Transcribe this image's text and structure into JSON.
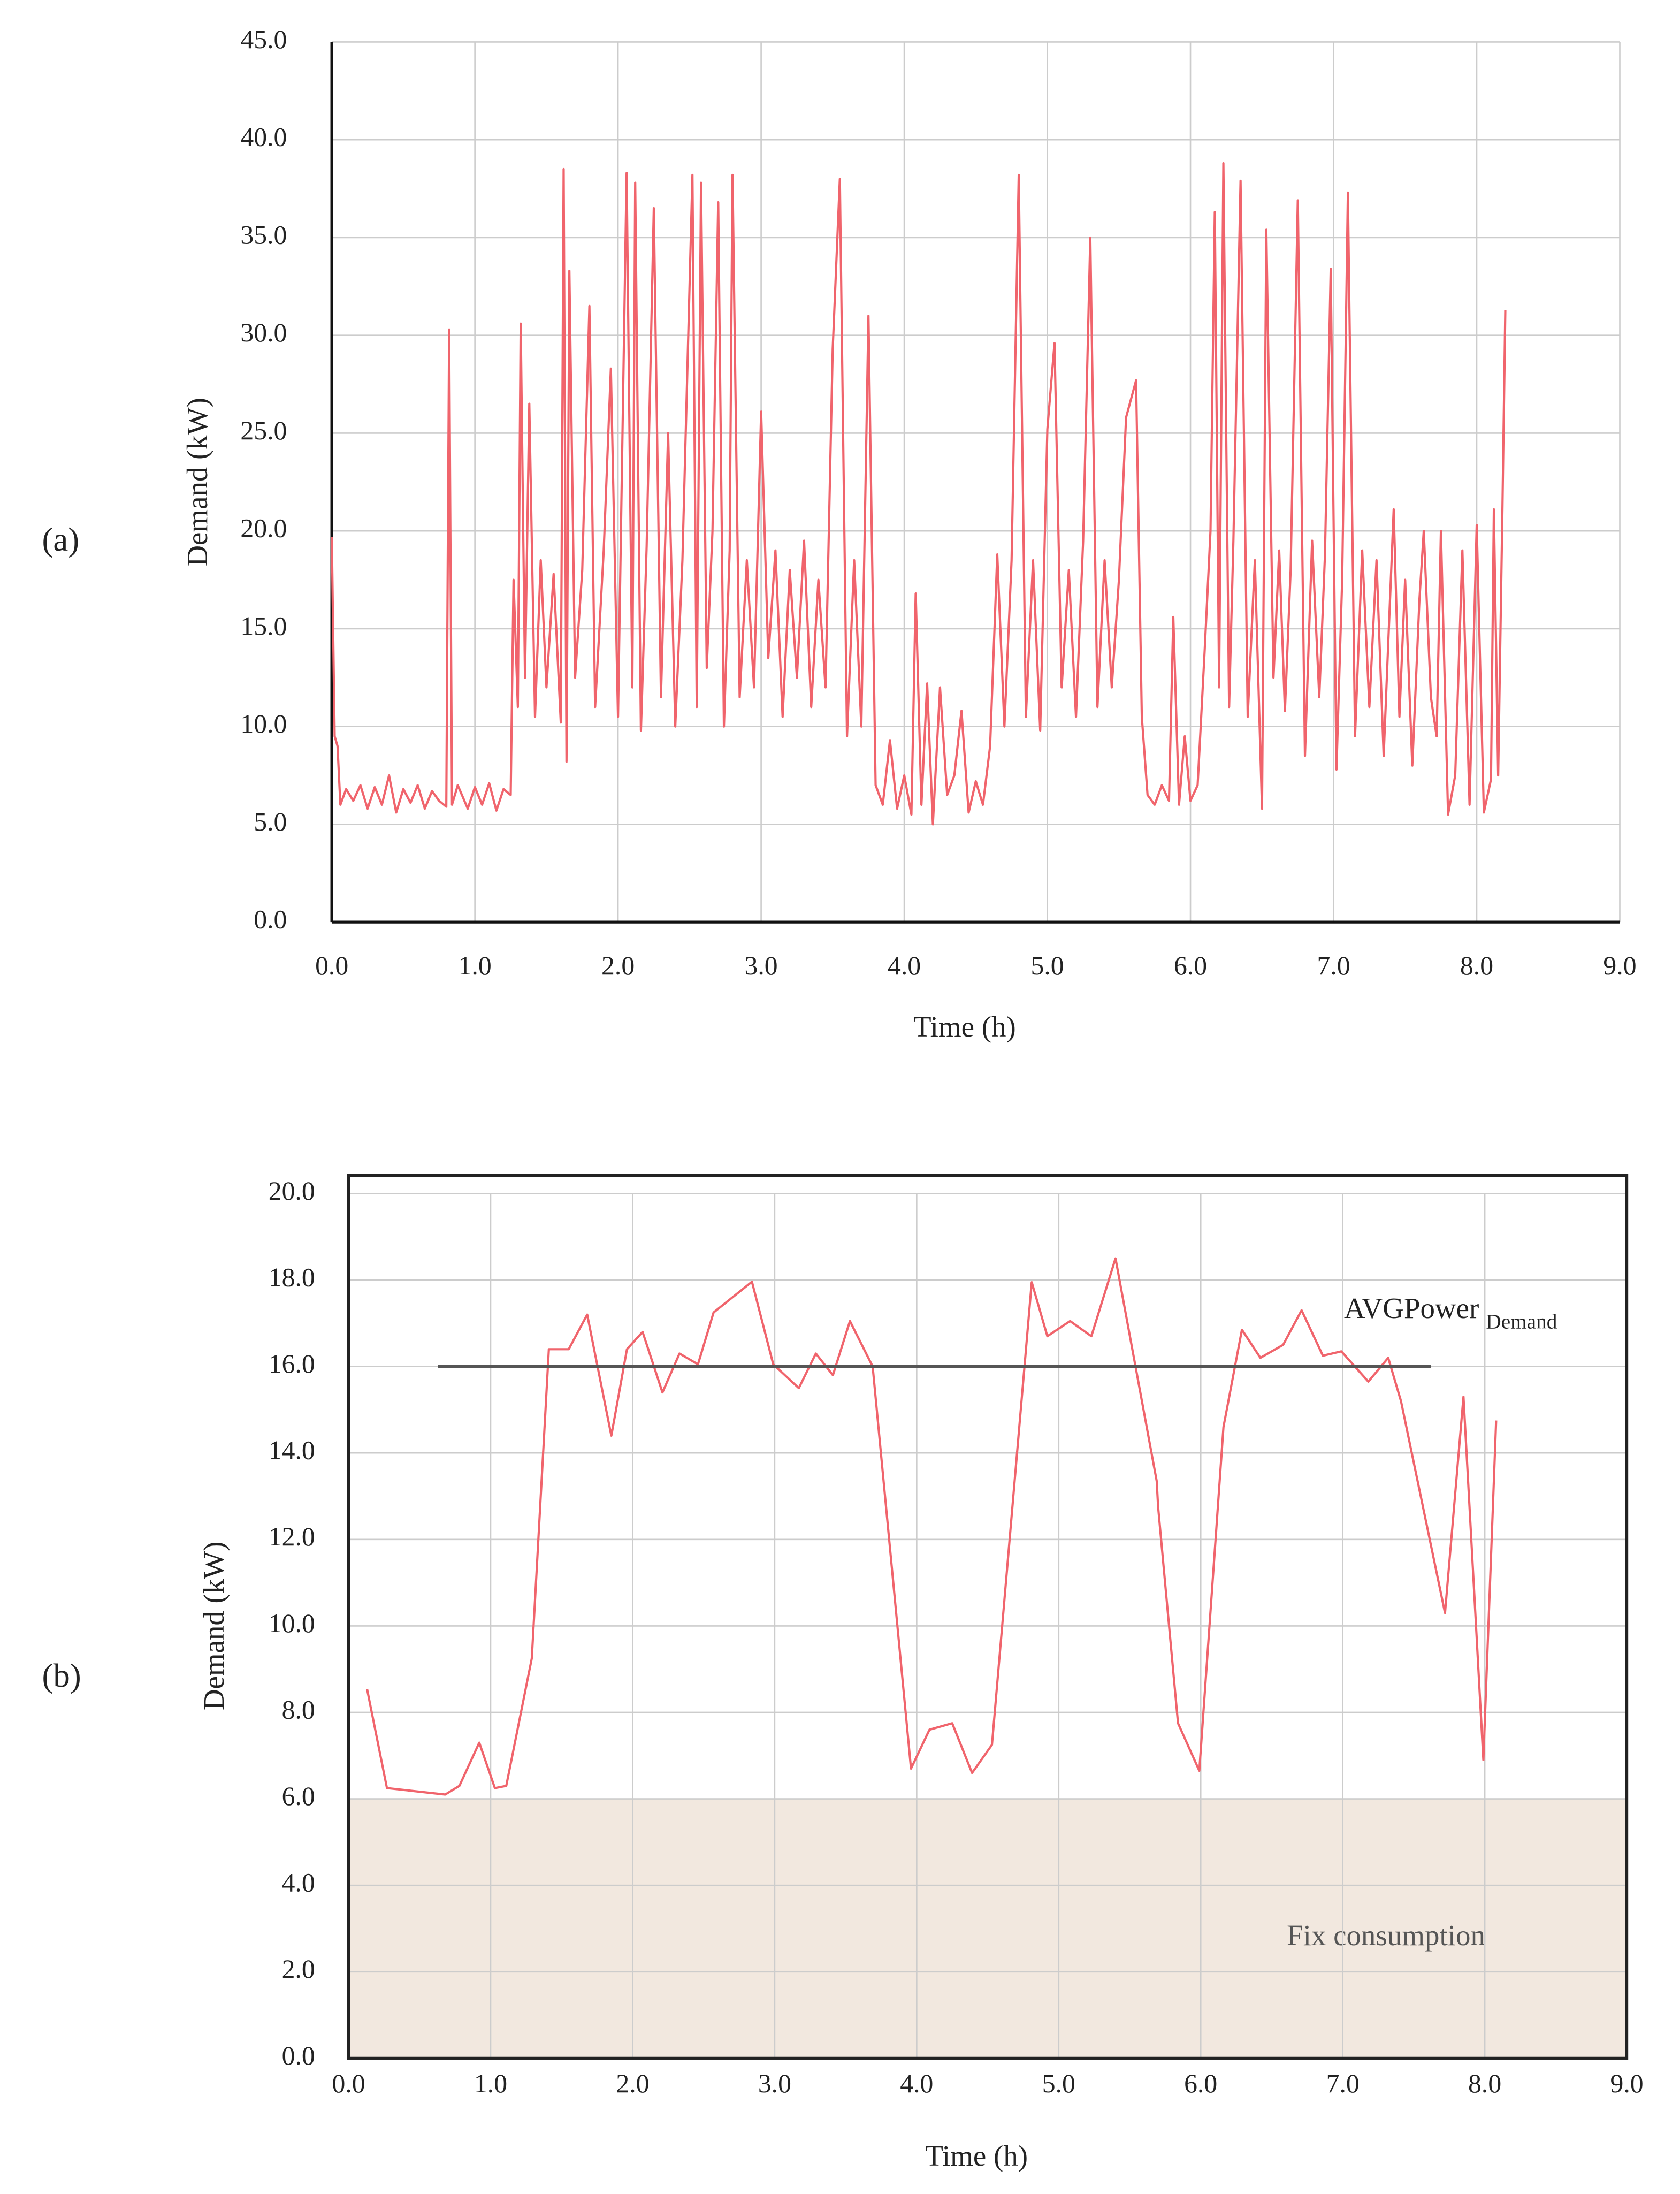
{
  "chart_data": [
    {
      "type": "line",
      "panel_label": "(a)",
      "x_label": "Time (h)",
      "y_label": "Demand (kW)",
      "grid": true,
      "frame": "axes",
      "xlim": [
        0,
        9
      ],
      "ylim": [
        0,
        45
      ],
      "xticks": [
        {
          "value": 0,
          "label": "0.0"
        },
        {
          "value": 1,
          "label": "1.0"
        },
        {
          "value": 2,
          "label": "2.0"
        },
        {
          "value": 3,
          "label": "3.0"
        },
        {
          "value": 4,
          "label": "4.0"
        },
        {
          "value": 5,
          "label": "5.0"
        },
        {
          "value": 6,
          "label": "6.0"
        },
        {
          "value": 7,
          "label": "7.0"
        },
        {
          "value": 8,
          "label": "8.0"
        },
        {
          "value": 9,
          "label": "9.0"
        }
      ],
      "yticks": [
        {
          "value": 0,
          "label": "0.0"
        },
        {
          "value": 5,
          "label": "5.0"
        },
        {
          "value": 10,
          "label": "10.0"
        },
        {
          "value": 15,
          "label": "15.0"
        },
        {
          "value": 20,
          "label": "20.0"
        },
        {
          "value": 25,
          "label": "25.0"
        },
        {
          "value": 30,
          "label": "30.0"
        },
        {
          "value": 35,
          "label": "35.0"
        },
        {
          "value": 40,
          "label": "40.0"
        },
        {
          "value": 45,
          "label": "45.0"
        }
      ],
      "series": [
        {
          "color": "#f0646c",
          "x": [
            0,
            0.02,
            0.04,
            0.06,
            0.1,
            0.15,
            0.2,
            0.25,
            0.3,
            0.35,
            0.4,
            0.45,
            0.5,
            0.55,
            0.6,
            0.65,
            0.7,
            0.75,
            0.8,
            0.82,
            0.84,
            0.88,
            0.95,
            1.0,
            1.05,
            1.1,
            1.15,
            1.2,
            1.25,
            1.27,
            1.3,
            1.32,
            1.35,
            1.38,
            1.42,
            1.46,
            1.5,
            1.55,
            1.6,
            1.62,
            1.64,
            1.66,
            1.7,
            1.75,
            1.8,
            1.84,
            1.9,
            1.95,
            2.0,
            2.06,
            2.1,
            2.12,
            2.16,
            2.2,
            2.25,
            2.3,
            2.35,
            2.4,
            2.45,
            2.52,
            2.55,
            2.58,
            2.62,
            2.66,
            2.7,
            2.74,
            2.78,
            2.8,
            2.85,
            2.9,
            2.95,
            3.0,
            3.05,
            3.1,
            3.15,
            3.2,
            3.25,
            3.3,
            3.35,
            3.4,
            3.45,
            3.5,
            3.55,
            3.6,
            3.65,
            3.7,
            3.75,
            3.8,
            3.85,
            3.9,
            3.95,
            4.0,
            4.05,
            4.08,
            4.12,
            4.16,
            4.2,
            4.25,
            4.3,
            4.35,
            4.4,
            4.45,
            4.5,
            4.55,
            4.6,
            4.65,
            4.7,
            4.75,
            4.8,
            4.85,
            4.9,
            4.95,
            5.0,
            5.05,
            5.1,
            5.15,
            5.2,
            5.25,
            5.3,
            5.35,
            5.4,
            5.45,
            5.5,
            5.55,
            5.62,
            5.66,
            5.7,
            5.75,
            5.8,
            5.85,
            5.88,
            5.92,
            5.96,
            6.0,
            6.05,
            6.1,
            6.14,
            6.17,
            6.2,
            6.23,
            6.27,
            6.3,
            6.35,
            6.4,
            6.45,
            6.5,
            6.53,
            6.58,
            6.62,
            6.66,
            6.7,
            6.75,
            6.8,
            6.85,
            6.9,
            6.94,
            6.98,
            7.02,
            7.06,
            7.1,
            7.15,
            7.2,
            7.25,
            7.3,
            7.35,
            7.42,
            7.46,
            7.5,
            7.55,
            7.6,
            7.63,
            7.68,
            7.72,
            7.75,
            7.8,
            7.85,
            7.9,
            7.95,
            8.0,
            8.05,
            8.1,
            8.12,
            8.15,
            8.18,
            8.2
          ],
          "values": [
            19.7,
            9.5,
            9.0,
            6.0,
            6.8,
            6.2,
            7.0,
            5.8,
            6.9,
            6.0,
            7.5,
            5.6,
            6.8,
            6.1,
            7.0,
            5.8,
            6.7,
            6.2,
            5.9,
            30.3,
            6.0,
            7.0,
            5.8,
            6.9,
            6.0,
            7.1,
            5.7,
            6.8,
            6.5,
            17.5,
            11.0,
            30.6,
            12.5,
            26.5,
            10.5,
            18.5,
            12.0,
            17.8,
            10.2,
            38.5,
            8.2,
            33.3,
            12.5,
            18.0,
            31.5,
            11.0,
            19.0,
            28.3,
            10.5,
            38.3,
            12.0,
            37.8,
            9.8,
            19.2,
            36.5,
            11.5,
            25.0,
            10.0,
            18.5,
            38.2,
            11.0,
            37.8,
            13.0,
            20.0,
            36.8,
            10.0,
            19.0,
            38.2,
            11.5,
            18.5,
            12.0,
            26.1,
            13.5,
            19.0,
            10.5,
            18.0,
            12.5,
            19.5,
            11.0,
            17.5,
            12.0,
            29.3,
            38.0,
            9.5,
            18.5,
            10.0,
            31.0,
            7.0,
            6.0,
            9.3,
            5.8,
            7.5,
            5.5,
            16.8,
            6.0,
            12.2,
            5.0,
            12.0,
            6.5,
            7.5,
            10.8,
            5.6,
            7.2,
            6.0,
            9.0,
            18.8,
            10.0,
            18.5,
            38.2,
            10.5,
            18.5,
            9.8,
            25.2,
            29.6,
            12.0,
            18.0,
            10.5,
            19.5,
            35.0,
            11.0,
            18.5,
            12.0,
            17.5,
            25.8,
            27.7,
            10.5,
            6.5,
            6.0,
            7.0,
            6.2,
            15.6,
            6.0,
            9.5,
            6.2,
            7.0,
            14.0,
            20.0,
            36.3,
            12.0,
            38.8,
            11.0,
            19.5,
            37.9,
            10.5,
            18.5,
            5.8,
            35.4,
            12.5,
            19.0,
            10.8,
            18.0,
            36.9,
            8.5,
            19.5,
            11.5,
            18.8,
            33.4,
            7.8,
            17.5,
            37.3,
            9.5,
            19.0,
            11.0,
            18.5,
            8.5,
            21.1,
            10.5,
            17.5,
            8.0,
            16.5,
            20.0,
            11.5,
            9.5,
            20.0,
            5.5,
            7.5,
            19.0,
            6.0,
            20.3,
            5.6,
            7.3,
            21.1,
            7.5,
            21.2,
            31.3
          ]
        }
      ]
    },
    {
      "type": "line",
      "panel_label": "(b)",
      "x_label": "Time (h)",
      "y_label": "Demand (kW)",
      "grid": true,
      "frame": "box",
      "xlim": [
        0,
        9
      ],
      "ylim": [
        0,
        20
      ],
      "xticks": [
        {
          "value": 0,
          "label": "0.0"
        },
        {
          "value": 1,
          "label": "1.0"
        },
        {
          "value": 2,
          "label": "2.0"
        },
        {
          "value": 3,
          "label": "3.0"
        },
        {
          "value": 4,
          "label": "4.0"
        },
        {
          "value": 5,
          "label": "5.0"
        },
        {
          "value": 6,
          "label": "6.0"
        },
        {
          "value": 7,
          "label": "7.0"
        },
        {
          "value": 8,
          "label": "8.0"
        },
        {
          "value": 9,
          "label": "9.0"
        }
      ],
      "yticks": [
        {
          "value": 0,
          "label": "0.0"
        },
        {
          "value": 2,
          "label": "2.0"
        },
        {
          "value": 4,
          "label": "4.0"
        },
        {
          "value": 6,
          "label": "6.0"
        },
        {
          "value": 8,
          "label": "8.0"
        },
        {
          "value": 10,
          "label": "10.0"
        },
        {
          "value": 12,
          "label": "12.0"
        },
        {
          "value": 14,
          "label": "14.0"
        },
        {
          "value": 16,
          "label": "16.0"
        },
        {
          "value": 18,
          "label": "18.0"
        },
        {
          "value": 20,
          "label": "20.0"
        }
      ],
      "shade": {
        "ymin": 0,
        "ymax": 6,
        "color": "#f2e8df",
        "label": "Fix consumption"
      },
      "annotation": {
        "text": "AVGPower",
        "sub": "Demand"
      },
      "series": [
        {
          "color": "#f0646c",
          "x": [
            0.13,
            0.27,
            0.68,
            0.78,
            0.92,
            1.03,
            1.11,
            1.29,
            1.41,
            1.55,
            1.68,
            1.85,
            1.96,
            2.07,
            2.21,
            2.33,
            2.46,
            2.57,
            2.84,
            2.99,
            3.17,
            3.29,
            3.41,
            3.53,
            3.69,
            3.96,
            4.09,
            4.25,
            4.39,
            4.53,
            4.81,
            4.92,
            5.08,
            5.23,
            5.4,
            5.69,
            5.7,
            5.84,
            5.99,
            6.16,
            6.29,
            6.42,
            6.58,
            6.71,
            6.86,
            6.99,
            7.18,
            7.32,
            7.41,
            7.72,
            7.85,
            7.99,
            8.08
          ],
          "values": [
            8.54,
            6.25,
            6.1,
            6.3,
            7.3,
            6.25,
            6.3,
            9.25,
            16.4,
            16.4,
            17.2,
            14.4,
            16.4,
            16.8,
            15.4,
            16.3,
            16.05,
            17.25,
            17.96,
            16.05,
            15.5,
            16.3,
            15.8,
            17.05,
            16.0,
            6.7,
            7.6,
            7.75,
            6.6,
            7.25,
            17.95,
            16.7,
            17.05,
            16.7,
            18.5,
            13.35,
            12.75,
            7.75,
            6.65,
            14.6,
            16.85,
            16.2,
            16.5,
            17.3,
            16.25,
            16.35,
            15.65,
            16.2,
            15.2,
            10.3,
            15.3,
            6.9,
            14.75
          ]
        },
        {
          "color": "#555555",
          "x": [
            0.63,
            7.62
          ],
          "values": [
            16,
            16
          ]
        }
      ]
    }
  ]
}
